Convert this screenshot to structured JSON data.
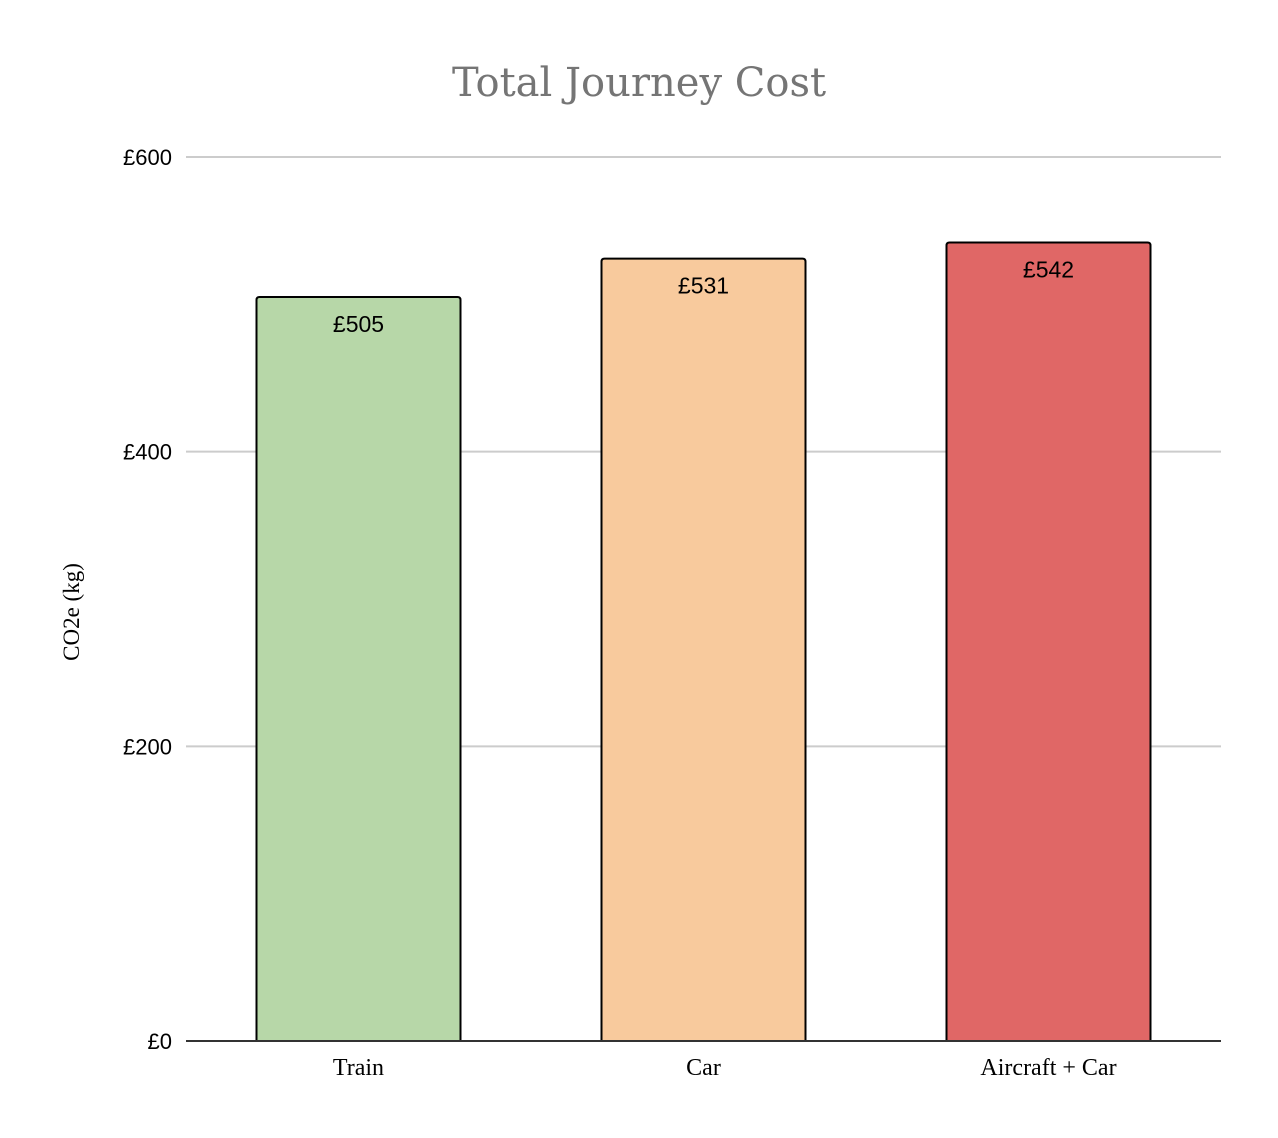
{
  "chart_data": {
    "type": "bar",
    "title": "Total Journey Cost",
    "xlabel": "",
    "ylabel": "CO2e (kg)",
    "categories": [
      "Train",
      "Car",
      "Aircraft + Car"
    ],
    "values": [
      505,
      531,
      542
    ],
    "data_labels": [
      "£505",
      "£531",
      "£542"
    ],
    "bar_colors": [
      "#b7d7a8",
      "#f8ca9d",
      "#e06766"
    ],
    "ylim": [
      0,
      600
    ],
    "yticks": [
      0,
      200,
      400,
      600
    ],
    "ytick_labels": [
      "£0",
      "£200",
      "£400",
      "£600"
    ],
    "grid": true,
    "legend": "none"
  }
}
